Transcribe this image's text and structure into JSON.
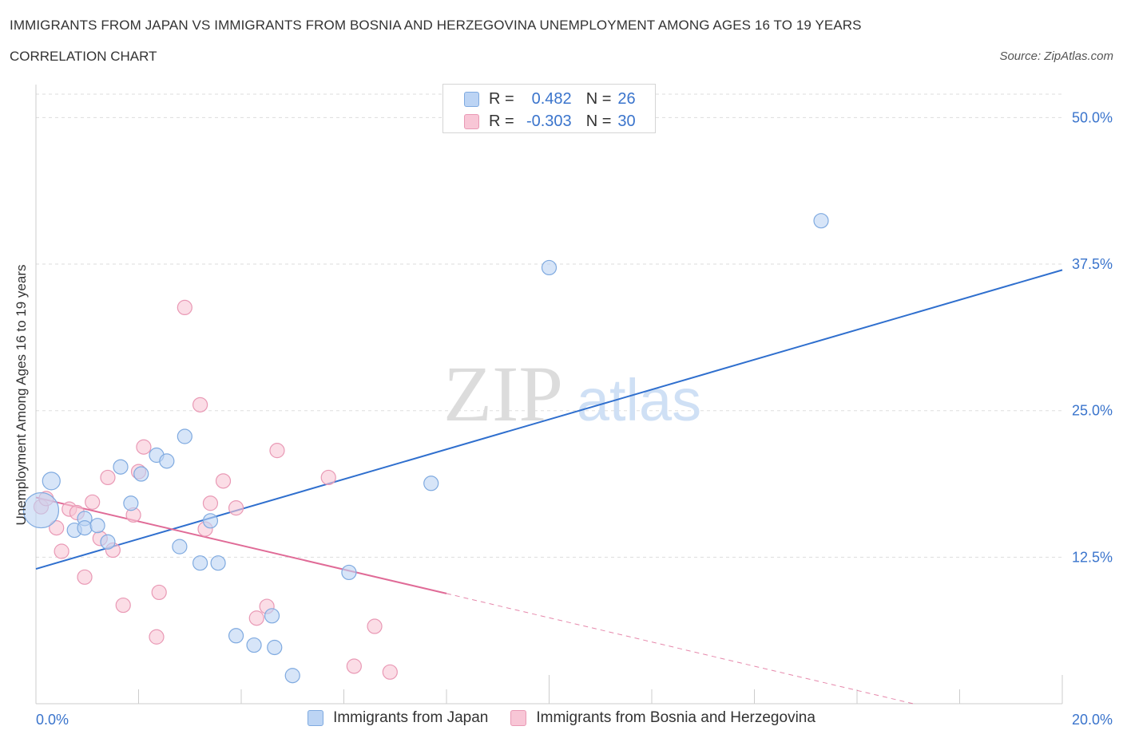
{
  "header": {
    "title": "IMMIGRANTS FROM JAPAN VS IMMIGRANTS FROM BOSNIA AND HERZEGOVINA UNEMPLOYMENT AMONG AGES 16 TO 19 YEARS",
    "subtitle": "CORRELATION CHART",
    "source": "Source: ZipAtlas.com"
  },
  "watermark": {
    "zip": "ZIP",
    "atlas": "atlas"
  },
  "legend": {
    "rows": [
      {
        "r_label": "R =",
        "r_value": "0.482",
        "n_label": "N =",
        "n_value": "26"
      },
      {
        "r_label": "R =",
        "r_value": "-0.303",
        "n_label": "N =",
        "n_value": "30"
      }
    ]
  },
  "colors": {
    "japan_fill": "#bcd4f4",
    "japan_stroke": "#7faae0",
    "japan_line": "#2f6fce",
    "bosnia_fill": "#f8c6d6",
    "bosnia_stroke": "#e999b5",
    "bosnia_line": "#e06b97",
    "tick_label": "#3a74cc"
  },
  "chart_data": {
    "type": "scatter",
    "title": "IMMIGRANTS FROM JAPAN VS IMMIGRANTS FROM BOSNIA AND HERZEGOVINA UNEMPLOYMENT AMONG AGES 16 TO 19 YEARS",
    "xlabel": "",
    "ylabel": "Unemployment Among Ages 16 to 19 years",
    "xlim": [
      0,
      20
    ],
    "ylim": [
      0,
      52
    ],
    "x_tick_labels": [
      "0.0%",
      "20.0%"
    ],
    "y_ticks": [
      12.5,
      25.0,
      37.5,
      50.0
    ],
    "y_tick_labels": [
      "12.5%",
      "25.0%",
      "37.5%",
      "50.0%"
    ],
    "grid": true,
    "series": [
      {
        "name": "Immigrants from Japan",
        "r": 0.482,
        "n": 26,
        "trend": {
          "x": [
            0,
            20
          ],
          "y": [
            11.5,
            37.0
          ]
        },
        "points": [
          {
            "x": 0.1,
            "y": 16.5
          },
          {
            "x": 0.3,
            "y": 19.0
          },
          {
            "x": 0.95,
            "y": 15.8
          },
          {
            "x": 0.75,
            "y": 14.8
          },
          {
            "x": 0.95,
            "y": 15.0
          },
          {
            "x": 1.2,
            "y": 15.2
          },
          {
            "x": 1.4,
            "y": 13.8
          },
          {
            "x": 1.65,
            "y": 20.2
          },
          {
            "x": 1.85,
            "y": 17.1
          },
          {
            "x": 2.05,
            "y": 19.6
          },
          {
            "x": 2.35,
            "y": 21.2
          },
          {
            "x": 2.55,
            "y": 20.7
          },
          {
            "x": 2.8,
            "y": 13.4
          },
          {
            "x": 2.9,
            "y": 22.8
          },
          {
            "x": 3.2,
            "y": 12.0
          },
          {
            "x": 3.4,
            "y": 15.6
          },
          {
            "x": 3.55,
            "y": 12.0
          },
          {
            "x": 3.9,
            "y": 5.8
          },
          {
            "x": 4.25,
            "y": 5.0
          },
          {
            "x": 4.6,
            "y": 7.5
          },
          {
            "x": 4.65,
            "y": 4.8
          },
          {
            "x": 5.0,
            "y": 2.4
          },
          {
            "x": 6.1,
            "y": 11.2
          },
          {
            "x": 7.7,
            "y": 18.8
          },
          {
            "x": 10.0,
            "y": 37.2
          },
          {
            "x": 15.3,
            "y": 41.2
          }
        ],
        "sizes": [
          22,
          11,
          9,
          9,
          9,
          9,
          9,
          9,
          9,
          9,
          9,
          9,
          9,
          9,
          9,
          9,
          9,
          9,
          9,
          9,
          9,
          9,
          9,
          9,
          9,
          9
        ]
      },
      {
        "name": "Immigrants from Bosnia and Herzegovina",
        "r": -0.303,
        "n": 30,
        "trend": {
          "x": [
            0,
            8.0
          ],
          "y": [
            17.6,
            9.4
          ]
        },
        "trend_dashed": {
          "x": [
            8.0,
            20.0
          ],
          "y": [
            9.4,
            -3.0
          ]
        },
        "points": [
          {
            "x": 0.1,
            "y": 16.8
          },
          {
            "x": 0.2,
            "y": 17.5
          },
          {
            "x": 0.4,
            "y": 15.0
          },
          {
            "x": 0.5,
            "y": 13.0
          },
          {
            "x": 0.65,
            "y": 16.6
          },
          {
            "x": 0.8,
            "y": 16.3
          },
          {
            "x": 0.95,
            "y": 10.8
          },
          {
            "x": 1.1,
            "y": 17.2
          },
          {
            "x": 1.25,
            "y": 14.1
          },
          {
            "x": 1.4,
            "y": 19.3
          },
          {
            "x": 1.5,
            "y": 13.1
          },
          {
            "x": 1.7,
            "y": 8.4
          },
          {
            "x": 1.9,
            "y": 16.1
          },
          {
            "x": 2.0,
            "y": 19.8
          },
          {
            "x": 2.1,
            "y": 21.9
          },
          {
            "x": 2.35,
            "y": 5.7
          },
          {
            "x": 2.4,
            "y": 9.5
          },
          {
            "x": 2.9,
            "y": 33.8
          },
          {
            "x": 3.2,
            "y": 25.5
          },
          {
            "x": 3.3,
            "y": 14.9
          },
          {
            "x": 3.4,
            "y": 17.1
          },
          {
            "x": 3.65,
            "y": 19.0
          },
          {
            "x": 3.9,
            "y": 16.7
          },
          {
            "x": 4.3,
            "y": 7.3
          },
          {
            "x": 4.5,
            "y": 8.3
          },
          {
            "x": 4.7,
            "y": 21.6
          },
          {
            "x": 5.7,
            "y": 19.3
          },
          {
            "x": 6.2,
            "y": 3.2
          },
          {
            "x": 6.6,
            "y": 6.6
          },
          {
            "x": 6.9,
            "y": 2.7
          }
        ],
        "sizes": [
          9,
          9,
          9,
          9,
          9,
          9,
          9,
          9,
          9,
          9,
          9,
          9,
          9,
          9,
          9,
          9,
          9,
          9,
          9,
          9,
          9,
          9,
          9,
          9,
          9,
          9,
          9,
          9,
          9,
          9
        ]
      }
    ]
  },
  "bottom_legend": {
    "japan_label": "Immigrants from Japan",
    "bosnia_label": "Immigrants from Bosnia and Herzegovina"
  }
}
